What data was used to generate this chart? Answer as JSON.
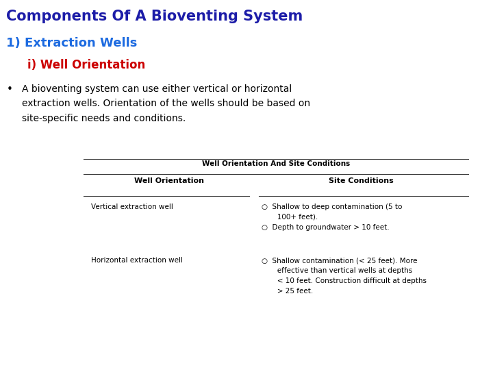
{
  "title": "Components Of A Bioventing System",
  "title_color": "#1C1CA8",
  "title_fontsize": 15,
  "subtitle1": "1) Extraction Wells",
  "subtitle1_color": "#1C6AE0",
  "subtitle1_fontsize": 13,
  "subtitle2": "i) Well Orientation",
  "subtitle2_color": "#CC0000",
  "subtitle2_fontsize": 12,
  "bullet_text1": "A bioventing system can use either vertical or horizontal",
  "bullet_text2": "extraction wells. Orientation of the wells should be based on",
  "bullet_text3": "site-specific needs and conditions.",
  "bullet_fontsize": 10,
  "bullet_color": "#000000",
  "table_title": "Well Orientation And Site Conditions",
  "col1_header": "Well Orientation",
  "col2_header": "Site Conditions",
  "row1_col1": "Vertical extraction well",
  "row1_col2_lines": [
    "○  Shallow to deep contamination (5 to",
    "       100+ feet).",
    "○  Depth to groundwater > 10 feet."
  ],
  "row2_col1": "Horizontal extraction well",
  "row2_col2_lines": [
    "○  Shallow contamination (< 25 feet). More",
    "       effective than vertical wells at depths",
    "       < 10 feet. Construction difficult at depths",
    "       > 25 feet."
  ],
  "bg_color": "#FFFFFF",
  "table_fontsize": 7.5,
  "header_fontsize": 8,
  "table_title_fontsize": 7.5
}
